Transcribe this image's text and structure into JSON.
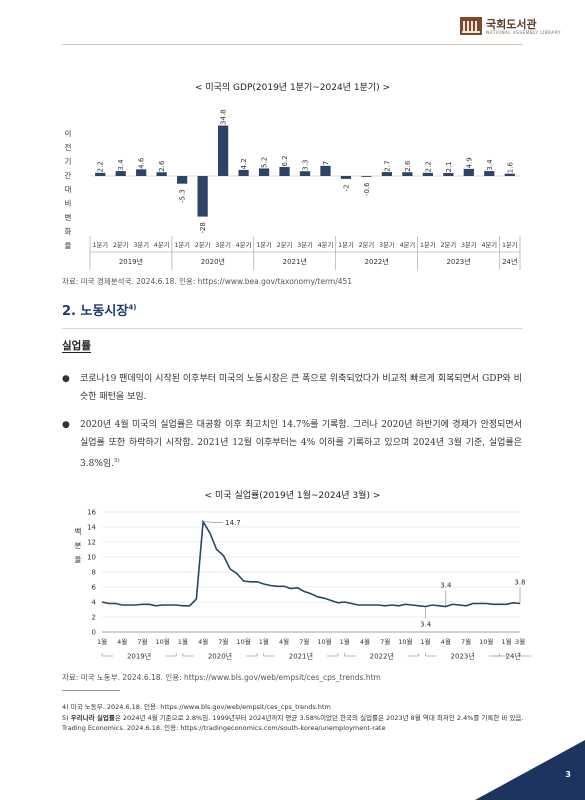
{
  "logo": {
    "name": "국회도서관",
    "sub": "NATIONAL ASSEMBLY LIBRARY"
  },
  "gdp_chart_title": "< 미국의 GDP(2019년 1분기~2024년 1분기) >",
  "gdp_source": "자료: 미국 경제분석국. 2024.6.18. 인용: https://www.bea.gov/taxonomy/term/451",
  "section": {
    "title": "2. 노동시장",
    "footnote_ref": "4)"
  },
  "subheading": "실업률",
  "bullets": [
    {
      "text": "코로나19 팬데믹이 시작된 이후부터 미국의 노동시장은 큰 폭으로 위축되었다가 비교적 빠르게 회복되면서 GDP와 비슷한 패턴을 보임.",
      "ref": ""
    },
    {
      "text": "2020년 4월 미국의 실업률은 대공황 이후 최고치인 14.7%를 기록함. 그러나 2020년 하반기에 경제가 안정되면서 실업률 또한 하락하기 시작함. 2021년 12월 이후부터는 4% 이하를 기록하고 있으며 2024년 3월 기준, 실업률은 3.8%임.",
      "ref": "5)"
    }
  ],
  "unemp_chart_title": "< 미국 실업률(2019년 1월~2024년 3월) >",
  "unemp_source": "자료: 미국 노동부. 2024.6.18. 인용: https://www.bls.gov/web/empsit/ces_cps_trends.htm",
  "footnotes": [
    {
      "num": "4)",
      "bold": "",
      "text": "미국 노동부. 2024.6.18. 인용: https://www.bls.gov/web/empsit/ces_cps_trends.htm"
    },
    {
      "num": "5)",
      "bold": "우리나라 실업률",
      "text": "은 2024년 4월 기준으로 2.8%임. 1999년부터 2024년까지 평균 3.58%이었던 한국의 실업률은 2023년 8월 역대 최저인 2.4%를 기록한 바 있음. Trading Economics. 2024.6.18. 인용: https://tradingeconomics.com/south-korea/unemployment-rate"
    }
  ],
  "page_number": "3",
  "colors": {
    "bar": "#2d4466",
    "line": "#2d4466",
    "title_blue": "#203a6b",
    "corner": "#1d3461"
  },
  "chart_data": [
    {
      "type": "bar",
      "title": "< 미국의 GDP(2019년 1분기~2024년 1분기) >",
      "ylabel": "이 전 기 간 대 비 변 화 율",
      "categories": [
        "1분기",
        "2분기",
        "3분기",
        "4분기",
        "1분기",
        "2분기",
        "3분기",
        "4분기",
        "1분기",
        "2분기",
        "3분기",
        "4분기",
        "1분기",
        "2분기",
        "3분기",
        "4분기",
        "1분기",
        "2분기",
        "3분기",
        "4분기",
        "1분기"
      ],
      "year_groups": [
        {
          "label": "2019년",
          "count": 4
        },
        {
          "label": "2020년",
          "count": 4
        },
        {
          "label": "2021년",
          "count": 4
        },
        {
          "label": "2022년",
          "count": 4
        },
        {
          "label": "2023년",
          "count": 4
        },
        {
          "label": "24년",
          "count": 1
        }
      ],
      "values": [
        2.2,
        3.4,
        4.6,
        2.6,
        -5.3,
        -28,
        34.8,
        4.2,
        5.2,
        6.2,
        3.3,
        7,
        -2,
        -0.6,
        2.7,
        2.6,
        2.2,
        2.1,
        4.9,
        3.4,
        1.6
      ],
      "labels": [
        "2.2",
        "3.4",
        "4.6",
        "2.6",
        "-5.3",
        "-28",
        "34.8",
        "4.2",
        "5.2",
        "6.2",
        "3.3",
        "7",
        "-2",
        "-0.6",
        "2.7",
        "2.6",
        "2.2",
        "2.1",
        "4.9",
        "3.4",
        "1.6"
      ],
      "grid": false
    },
    {
      "type": "line",
      "title": "< 미국 실업률(2019년 1월~2024년 3월) >",
      "ylabel": "백 분 율",
      "ylim": [
        0,
        16
      ],
      "yticks": [
        "0",
        "2",
        "4",
        "6",
        "8",
        "10",
        "12",
        "14",
        "16"
      ],
      "xtick_labels": [
        "1월",
        "4월",
        "7월",
        "10월",
        "1월",
        "4월",
        "7월",
        "10월",
        "1월",
        "4월",
        "7월",
        "10월",
        "1월",
        "4월",
        "7월",
        "10월",
        "1월",
        "4월",
        "7월",
        "10월",
        "1월",
        "3월"
      ],
      "year_groups": [
        {
          "label": "2019년",
          "months": 12
        },
        {
          "label": "2020년",
          "months": 12
        },
        {
          "label": "2021년",
          "months": 12
        },
        {
          "label": "2022년",
          "months": 12
        },
        {
          "label": "2023년",
          "months": 12
        },
        {
          "label": "24년",
          "months": 3
        }
      ],
      "values": [
        4.0,
        3.8,
        3.8,
        3.6,
        3.6,
        3.6,
        3.7,
        3.7,
        3.5,
        3.6,
        3.6,
        3.6,
        3.5,
        3.5,
        4.4,
        14.7,
        13.2,
        11.0,
        10.2,
        8.4,
        7.8,
        6.8,
        6.7,
        6.7,
        6.4,
        6.2,
        6.1,
        6.1,
        5.8,
        5.9,
        5.4,
        5.1,
        4.7,
        4.5,
        4.2,
        3.9,
        4.0,
        3.8,
        3.6,
        3.6,
        3.6,
        3.6,
        3.5,
        3.6,
        3.5,
        3.7,
        3.6,
        3.5,
        3.4,
        3.6,
        3.5,
        3.4,
        3.7,
        3.6,
        3.5,
        3.8,
        3.8,
        3.8,
        3.7,
        3.7,
        3.7,
        3.9,
        3.8
      ],
      "annotations": [
        {
          "index": 15,
          "text": "14.7"
        },
        {
          "index": 48,
          "text": "3.4"
        },
        {
          "index": 51,
          "text": "3.4"
        },
        {
          "index": 62,
          "text": "3.8"
        }
      ],
      "grid": true
    }
  ]
}
